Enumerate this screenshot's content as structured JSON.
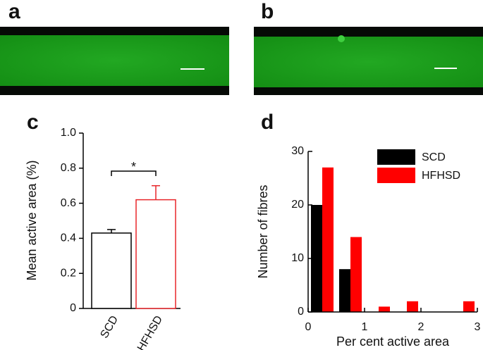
{
  "panel_labels": [
    "a",
    "b",
    "c",
    "d"
  ],
  "chart_data": [
    {
      "type": "bar",
      "ylabel": "Mean active area (%)",
      "categories": [
        "SCD",
        "HFHSD"
      ],
      "values": [
        0.43,
        0.62
      ],
      "errors": [
        0.02,
        0.08
      ],
      "colors": [
        "#000000",
        "#e8262a"
      ],
      "annotation": "*",
      "ylim": [
        0,
        1
      ],
      "yticks": [
        0,
        0.2,
        0.4,
        0.6,
        0.8,
        {
          "value": 1,
          "label": "1.0"
        }
      ]
    },
    {
      "type": "histogram",
      "xlabel": "Per cent active area",
      "ylabel": "Number of fibres",
      "x": [
        0.25,
        0.75,
        1.25,
        1.75,
        2.25,
        2.75
      ],
      "series": [
        {
          "name": "SCD",
          "color": "#000000",
          "values": [
            20,
            8,
            0,
            0,
            0,
            0
          ]
        },
        {
          "name": "HFHSD",
          "color": "#ff0000",
          "values": [
            27,
            14,
            1,
            2,
            0,
            2
          ]
        }
      ],
      "xlim": [
        0,
        3
      ],
      "ylim": [
        0,
        30
      ],
      "xticks": [
        0,
        1,
        2,
        3
      ],
      "yticks": [
        0,
        10,
        20,
        30
      ]
    }
  ]
}
